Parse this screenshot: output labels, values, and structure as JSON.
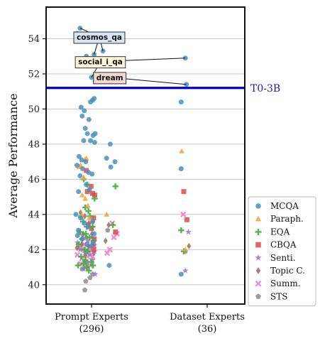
{
  "chart_data": {
    "type": "scatter",
    "ylabel": "Average Performance",
    "ylim": [
      38.9,
      55.8
    ],
    "yticks": [
      40,
      42,
      44,
      46,
      48,
      50,
      52,
      54
    ],
    "grid": "horizontal",
    "categories": [
      {
        "name": "Prompt Experts",
        "count": "(296)"
      },
      {
        "name": "Dataset Experts",
        "count": "(36)"
      }
    ],
    "reference_line": {
      "label": "T0-3B",
      "value": 51.2,
      "color": "#0000cc"
    },
    "legend_position": "right",
    "series": [
      {
        "name": "MCQA",
        "color": "#4c8fbd",
        "marker": "circle"
      },
      {
        "name": "Paraph.",
        "color": "#f2a23c",
        "marker": "triangle"
      },
      {
        "name": "EQA",
        "color": "#3fae3f",
        "marker": "plus"
      },
      {
        "name": "CBQA",
        "color": "#d94c4c",
        "marker": "square"
      },
      {
        "name": "Senti.",
        "color": "#9a74c9",
        "marker": "star"
      },
      {
        "name": "Topic C.",
        "color": "#a2675a",
        "marker": "diamond"
      },
      {
        "name": "Summ.",
        "color": "#ee82cf",
        "marker": "x"
      },
      {
        "name": "STS",
        "color": "#8c8c8c",
        "marker": "pentagon"
      }
    ],
    "annotations": [
      {
        "label": "cosmos_qa",
        "fill": "#d7e4f2",
        "anchor": [
          0.15,
          54.1
        ],
        "targets": [
          [
            -0.28,
            54.3
          ],
          [
            -0.22,
            54.6
          ],
          [
            -0.05,
            54.2
          ],
          [
            0.05,
            53.1
          ],
          [
            0.22,
            53.3
          ]
        ]
      },
      {
        "label": "social_i_qa",
        "fill": "#fdf6d8",
        "anchor": [
          0.17,
          52.7
        ],
        "targets": [
          [
            -0.1,
            53.0
          ],
          [
            0.0,
            51.8
          ],
          [
            0.58,
            52.9
          ]
        ]
      },
      {
        "label": "dream",
        "fill": "#f3d8d2",
        "anchor": [
          0.35,
          51.8
        ],
        "targets": [
          [
            0.07,
            51.6
          ],
          [
            0.6,
            51.4
          ]
        ]
      }
    ],
    "points": {
      "MCQA": [
        [
          -0.28,
          54.3
        ],
        [
          -0.22,
          54.6
        ],
        [
          -0.05,
          54.2
        ],
        [
          0.05,
          53.1
        ],
        [
          0.22,
          53.3
        ],
        [
          -0.1,
          53.0
        ],
        [
          0.0,
          51.8
        ],
        [
          0.58,
          52.9
        ],
        [
          0.07,
          51.6
        ],
        [
          0.6,
          51.4
        ],
        [
          -0.02,
          50.4
        ],
        [
          0.02,
          50.5
        ],
        [
          0.05,
          50.6
        ],
        [
          -0.2,
          50.1
        ],
        [
          -0.14,
          49.9
        ],
        [
          -0.18,
          49.6
        ],
        [
          -0.05,
          49.4
        ],
        [
          -0.12,
          48.9
        ],
        [
          -0.08,
          48.6
        ],
        [
          0.03,
          48.5
        ],
        [
          0.07,
          48.6
        ],
        [
          -0.15,
          48.2
        ],
        [
          -0.02,
          48.2
        ],
        [
          0.06,
          48.1
        ],
        [
          -0.24,
          47.3
        ],
        [
          -0.19,
          47.1
        ],
        [
          -0.11,
          47.0
        ],
        [
          -0.28,
          46.8
        ],
        [
          -0.17,
          46.6
        ],
        [
          -0.06,
          46.4
        ],
        [
          -0.22,
          46.2
        ],
        [
          0.01,
          46.3
        ],
        [
          -0.25,
          45.3
        ],
        [
          -0.1,
          45.7
        ],
        [
          -0.04,
          45.4
        ],
        [
          -0.3,
          44.0
        ],
        [
          -0.21,
          43.8
        ],
        [
          -0.14,
          43.5
        ],
        [
          -0.07,
          43.3
        ],
        [
          0.02,
          43.6
        ],
        [
          -0.25,
          43.1
        ],
        [
          0.05,
          42.9
        ],
        [
          -0.18,
          42.6
        ],
        [
          -0.09,
          42.3
        ],
        [
          0.03,
          42.4
        ],
        [
          0.5,
          50.4
        ],
        [
          0.36,
          48.0
        ],
        [
          0.45,
          47.0
        ],
        [
          0.29,
          47.2
        ],
        [
          0.37,
          46.7
        ],
        [
          0.5,
          46.6
        ],
        [
          0.34,
          41.1
        ],
        [
          0.5,
          40.6
        ],
        [
          -0.27,
          42.8
        ],
        [
          -0.01,
          42.2
        ]
      ],
      "Paraph.": [
        [
          -0.24,
          46.7
        ],
        [
          -0.21,
          46.8
        ],
        [
          -0.13,
          47.1
        ],
        [
          -0.1,
          47.2
        ],
        [
          -0.15,
          46.1
        ],
        [
          -0.18,
          45.1
        ],
        [
          -0.12,
          44.9
        ],
        [
          -0.07,
          44.5
        ],
        [
          -0.19,
          44.0
        ],
        [
          -0.04,
          43.8
        ],
        [
          0.51,
          47.6
        ],
        [
          0.29,
          44.0
        ],
        [
          0.58,
          42.0
        ]
      ],
      "EQA": [
        [
          -0.15,
          46.0
        ],
        [
          -0.08,
          45.7
        ],
        [
          0.06,
          44.9
        ],
        [
          -0.12,
          44.4
        ],
        [
          -0.06,
          44.2
        ],
        [
          -0.2,
          43.9
        ],
        [
          -0.03,
          43.9
        ],
        [
          -0.16,
          43.6
        ],
        [
          -0.09,
          43.3
        ],
        [
          0.02,
          43.3
        ],
        [
          -0.22,
          43.0
        ],
        [
          -0.11,
          42.9
        ],
        [
          -0.04,
          42.7
        ],
        [
          -0.18,
          42.6
        ],
        [
          0.04,
          42.5
        ],
        [
          -0.24,
          42.3
        ],
        [
          -0.14,
          42.0
        ],
        [
          -0.07,
          41.9
        ],
        [
          -0.2,
          41.6
        ],
        [
          -0.12,
          41.4
        ],
        [
          -0.01,
          41.3
        ],
        [
          -0.26,
          41.1
        ],
        [
          -0.15,
          41.2
        ],
        [
          -0.09,
          41.0
        ],
        [
          0.03,
          41.1
        ],
        [
          -0.05,
          40.8
        ],
        [
          0.46,
          45.6
        ],
        [
          0.41,
          43.4
        ],
        [
          0.5,
          43.1
        ],
        [
          0.55,
          41.9
        ]
      ],
      "CBQA": [
        [
          -0.1,
          46.5
        ],
        [
          -0.01,
          45.6
        ],
        [
          -0.08,
          45.3
        ],
        [
          0.02,
          45.2
        ],
        [
          0.06,
          45.1
        ],
        [
          0.04,
          43.8
        ],
        [
          -0.06,
          43.4
        ],
        [
          0.0,
          43.2
        ],
        [
          0.05,
          42.6
        ],
        [
          0.03,
          42.3
        ],
        [
          0.04,
          42.0
        ],
        [
          0.55,
          45.3
        ],
        [
          0.61,
          43.7
        ],
        [
          0.46,
          43.0
        ]
      ],
      "Senti.": [
        [
          -0.27,
          42.4
        ],
        [
          -0.17,
          42.8
        ],
        [
          -0.07,
          42.5
        ],
        [
          0.0,
          42.7
        ],
        [
          -0.22,
          42.0
        ],
        [
          -0.12,
          41.8
        ],
        [
          -0.03,
          41.7
        ],
        [
          0.06,
          41.9
        ],
        [
          -0.09,
          41.3
        ],
        [
          0.02,
          41.4
        ],
        [
          -0.15,
          40.9
        ],
        [
          0.07,
          40.6
        ],
        [
          0.64,
          43.0
        ],
        [
          0.58,
          40.8
        ]
      ],
      "Topic C.": [
        [
          -0.21,
          44.1
        ],
        [
          -0.13,
          43.9
        ],
        [
          -0.05,
          43.5
        ],
        [
          0.03,
          43.6
        ],
        [
          -0.25,
          43.0
        ],
        [
          -0.16,
          42.9
        ],
        [
          -0.1,
          42.7
        ],
        [
          0.01,
          42.9
        ],
        [
          -0.28,
          42.1
        ],
        [
          -0.19,
          42.3
        ],
        [
          -0.06,
          42.2
        ],
        [
          -0.12,
          41.7
        ],
        [
          0.04,
          41.8
        ],
        [
          0.33,
          43.4
        ],
        [
          0.27,
          42.5
        ],
        [
          0.65,
          42.2
        ]
      ],
      "Summ.": [
        [
          -0.23,
          42.1
        ],
        [
          -0.14,
          42.3
        ],
        [
          -0.04,
          42.1
        ],
        [
          0.05,
          42.2
        ],
        [
          -0.27,
          41.7
        ],
        [
          -0.18,
          41.5
        ],
        [
          -0.08,
          41.6
        ],
        [
          0.02,
          41.6
        ],
        [
          -0.21,
          41.2
        ],
        [
          -0.11,
          41.0
        ],
        [
          -0.02,
          41.1
        ],
        [
          -0.15,
          42.0
        ],
        [
          -0.06,
          41.9
        ],
        [
          0.54,
          44.0
        ],
        [
          0.4,
          43.5
        ],
        [
          0.43,
          42.7
        ],
        [
          0.49,
          42.9
        ],
        [
          0.35,
          42.0
        ],
        [
          0.3,
          41.8
        ]
      ],
      "STS": [
        [
          -0.18,
          40.9
        ],
        [
          -0.08,
          41.1
        ],
        [
          -0.03,
          40.4
        ],
        [
          0.02,
          40.6
        ],
        [
          -0.11,
          40.2
        ],
        [
          -0.13,
          39.7
        ],
        [
          0.31,
          43.1
        ],
        [
          0.58,
          41.9
        ]
      ]
    }
  }
}
